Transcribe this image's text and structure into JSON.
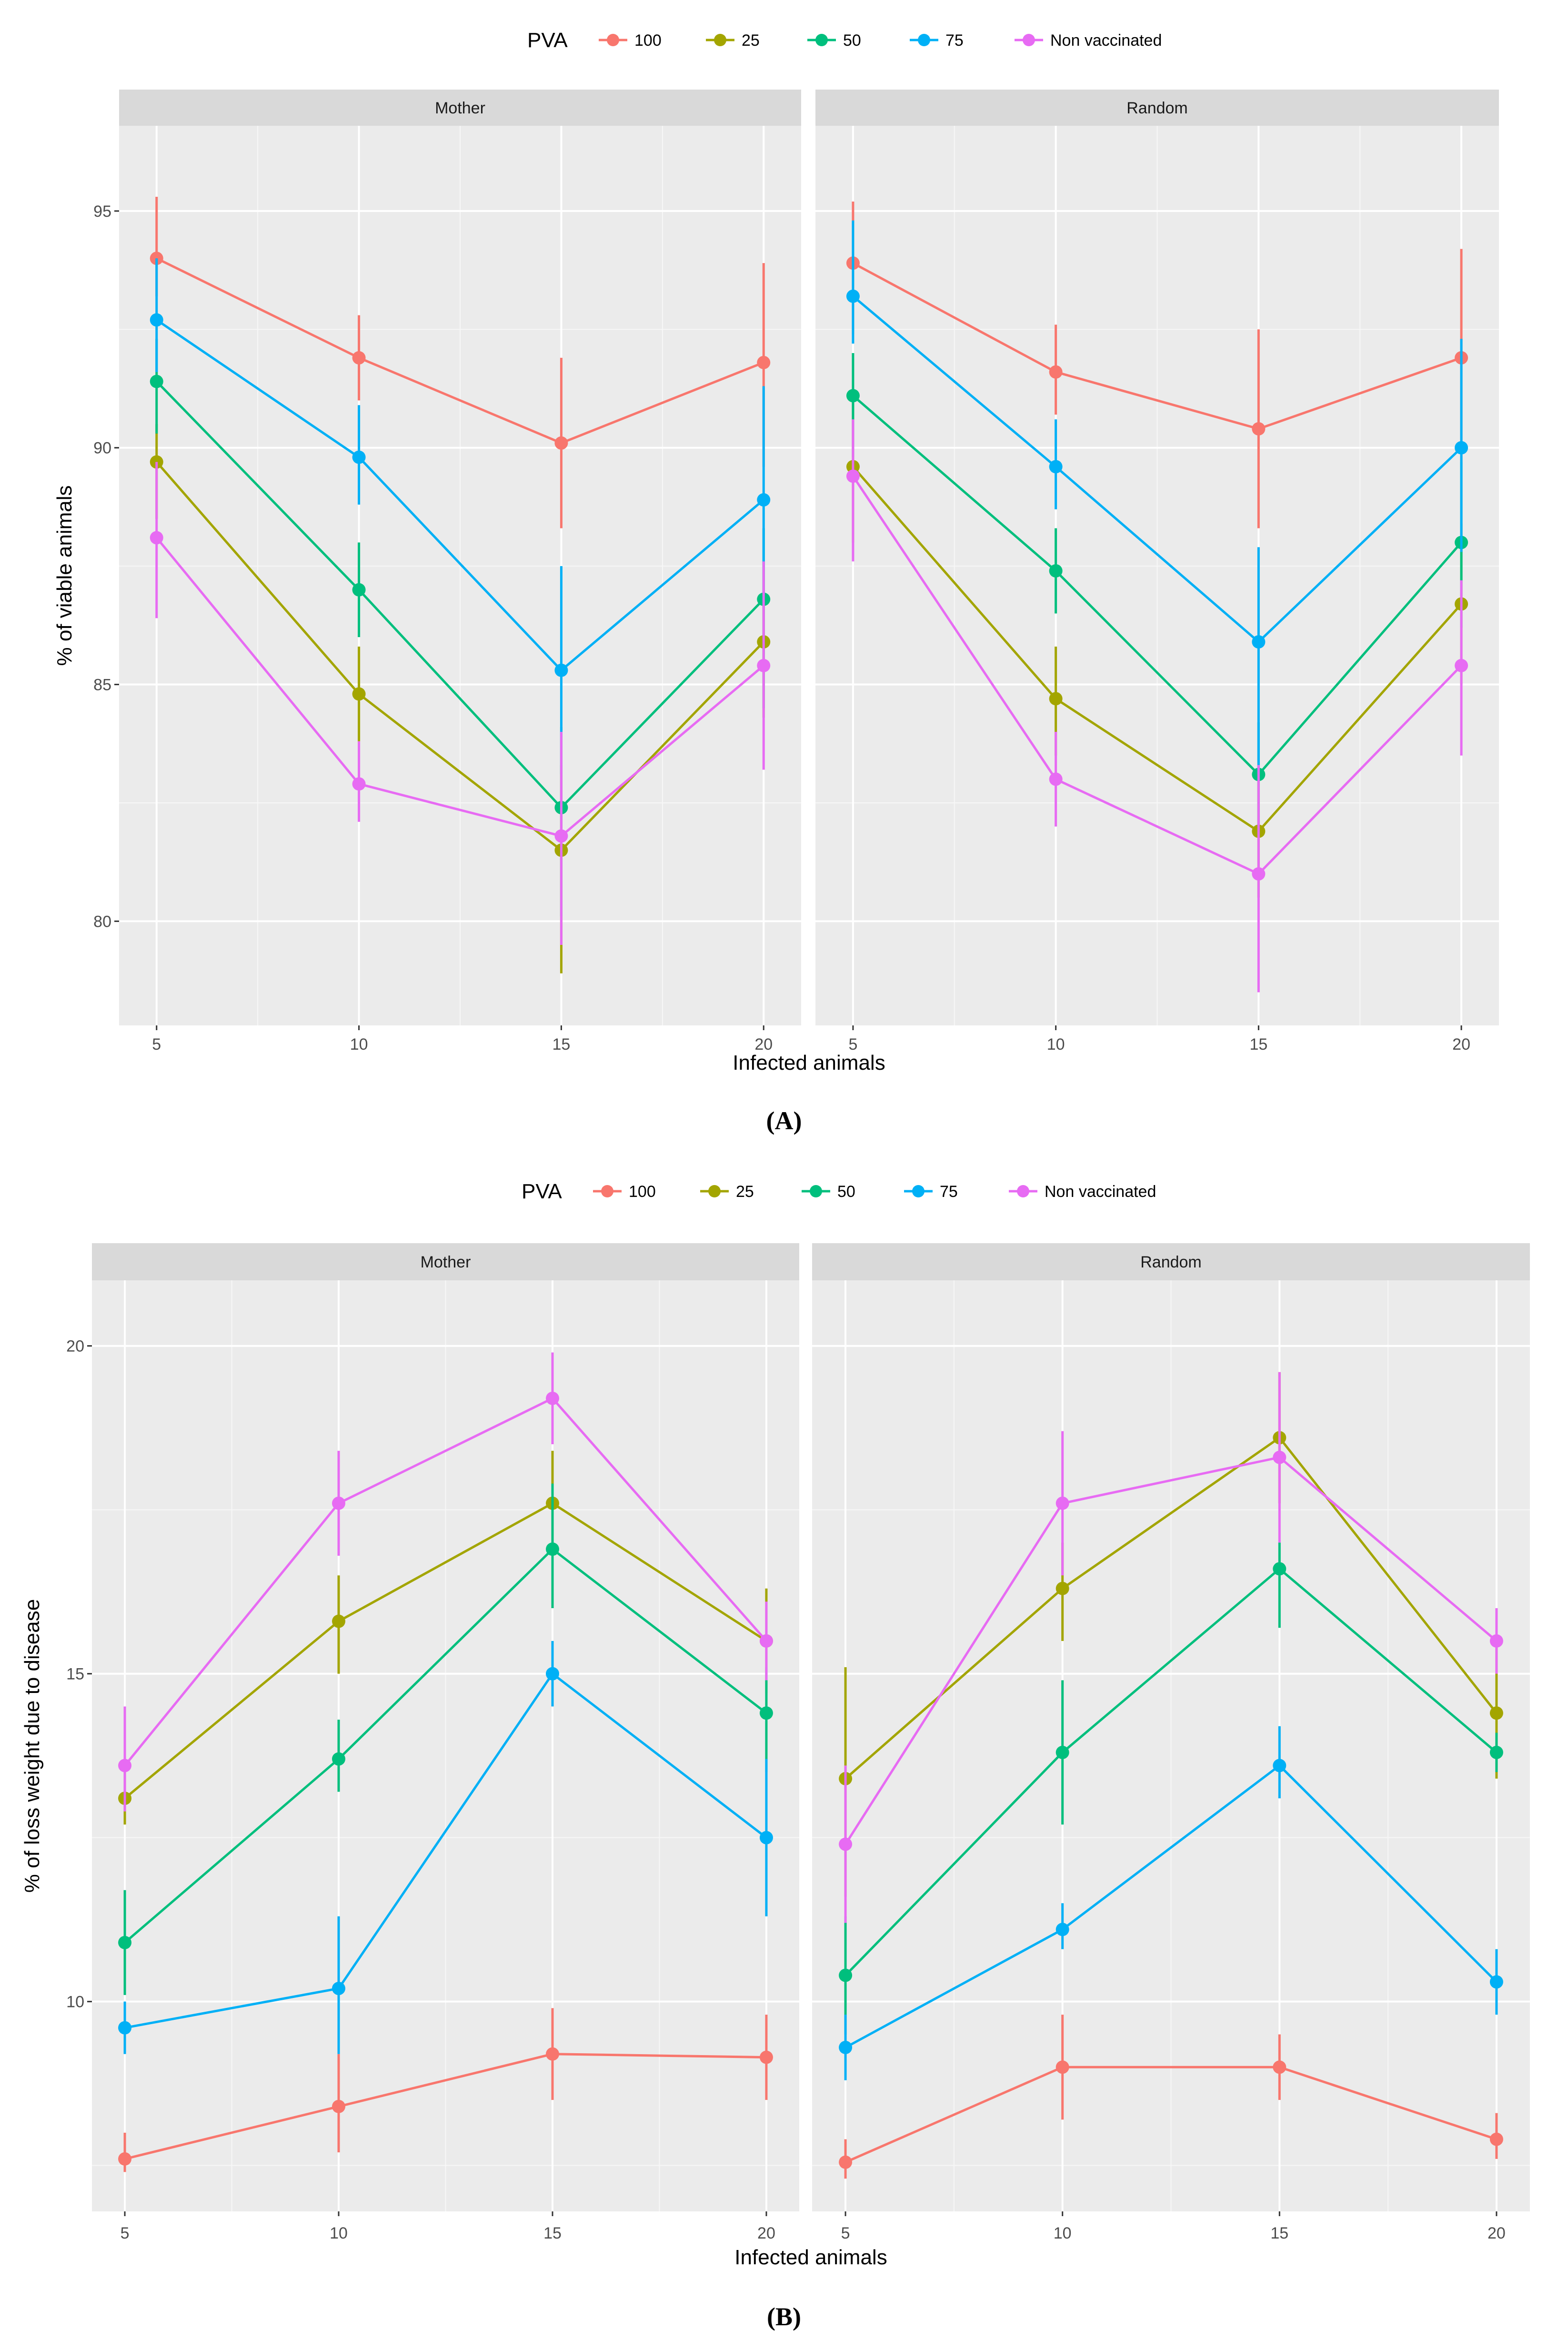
{
  "chart_data": [
    {
      "type": "line",
      "panel_label": "(A)",
      "title": "",
      "xlabel": "Infected animals",
      "ylabel": "% of viable animals",
      "legend_title": "PVA",
      "legend_position": "top",
      "ylim": [
        77.8,
        96.8
      ],
      "yticks": [
        80,
        85,
        90,
        95
      ],
      "ytick_labels": [
        "80",
        "85",
        "90",
        "95"
      ],
      "x": [
        5,
        10,
        15,
        20
      ],
      "xtick_labels": [
        "5",
        "10",
        "15",
        "20"
      ],
      "facets": [
        {
          "name": "Mother",
          "series": [
            {
              "name": "100",
              "color": "#F8766D",
              "values": [
                94.0,
                91.9,
                90.1,
                91.8
              ],
              "lower": [
                93.2,
                91.0,
                88.3,
                89.6
              ],
              "upper": [
                95.3,
                92.8,
                91.9,
                93.9
              ]
            },
            {
              "name": "25",
              "color": "#A3A500",
              "values": [
                89.7,
                84.8,
                81.5,
                85.9
              ],
              "lower": [
                88.5,
                83.8,
                78.9,
                84.3
              ],
              "upper": [
                90.5,
                85.8,
                83.3,
                87.6
              ]
            },
            {
              "name": "50",
              "color": "#00BF7D",
              "values": [
                91.4,
                87.0,
                82.4,
                86.8
              ],
              "lower": [
                90.3,
                86.0,
                80.1,
                84.5
              ],
              "upper": [
                92.3,
                88.0,
                84.1,
                88.3
              ]
            },
            {
              "name": "75",
              "color": "#00B0F6",
              "values": [
                92.7,
                89.8,
                85.3,
                88.9
              ],
              "lower": [
                91.6,
                88.8,
                83.1,
                86.9
              ],
              "upper": [
                94.0,
                90.9,
                87.5,
                91.3
              ]
            },
            {
              "name": "Non vaccinated",
              "color": "#E76BF3",
              "values": [
                88.1,
                82.9,
                81.8,
                85.4
              ],
              "lower": [
                86.4,
                82.1,
                79.5,
                83.2
              ],
              "upper": [
                89.7,
                83.8,
                84.0,
                87.6
              ]
            }
          ]
        },
        {
          "name": "Random",
          "series": [
            {
              "name": "100",
              "color": "#F8766D",
              "values": [
                93.9,
                91.6,
                90.4,
                91.9
              ],
              "lower": [
                92.4,
                90.7,
                88.3,
                89.7
              ],
              "upper": [
                95.2,
                92.6,
                92.5,
                94.2
              ]
            },
            {
              "name": "25",
              "color": "#A3A500",
              "values": [
                89.6,
                84.7,
                81.9,
                86.7
              ],
              "lower": [
                88.0,
                83.5,
                80.5,
                85.0
              ],
              "upper": [
                91.0,
                85.8,
                83.0,
                88.4
              ]
            },
            {
              "name": "50",
              "color": "#00BF7D",
              "values": [
                91.1,
                87.4,
                83.1,
                88.0
              ],
              "lower": [
                89.8,
                86.5,
                81.8,
                86.2
              ],
              "upper": [
                92.0,
                88.3,
                84.2,
                89.7
              ]
            },
            {
              "name": "75",
              "color": "#00B0F6",
              "values": [
                93.2,
                89.6,
                85.9,
                90.0
              ],
              "lower": [
                92.2,
                88.7,
                83.1,
                87.8
              ],
              "upper": [
                94.8,
                90.6,
                87.9,
                92.3
              ]
            },
            {
              "name": "Non vaccinated",
              "color": "#E76BF3",
              "values": [
                89.4,
                83.0,
                81.0,
                85.4
              ],
              "lower": [
                87.6,
                82.0,
                78.5,
                83.5
              ],
              "upper": [
                90.6,
                84.0,
                83.3,
                87.2
              ]
            }
          ]
        }
      ]
    },
    {
      "type": "line",
      "panel_label": "(B)",
      "title": "",
      "xlabel": "Infected animals",
      "ylabel": "% of loss weight due to disease",
      "legend_title": "PVA",
      "legend_position": "top",
      "ylim": [
        6.8,
        21.0
      ],
      "yticks": [
        10,
        15,
        20
      ],
      "ytick_labels": [
        "10",
        "15",
        "20"
      ],
      "x": [
        5,
        10,
        15,
        20
      ],
      "xtick_labels": [
        "5",
        "10",
        "15",
        "20"
      ],
      "facets": [
        {
          "name": "Mother",
          "series": [
            {
              "name": "100",
              "color": "#F8766D",
              "values": [
                7.6,
                8.4,
                9.2,
                9.15
              ],
              "lower": [
                7.4,
                7.7,
                8.5,
                8.5
              ],
              "upper": [
                8.0,
                9.2,
                9.9,
                9.8
              ]
            },
            {
              "name": "25",
              "color": "#A3A500",
              "values": [
                13.1,
                15.8,
                17.6,
                15.5
              ],
              "lower": [
                12.7,
                15.0,
                16.8,
                14.7
              ],
              "upper": [
                13.6,
                16.5,
                18.4,
                16.3
              ]
            },
            {
              "name": "50",
              "color": "#00BF7D",
              "values": [
                10.9,
                13.7,
                16.9,
                14.4
              ],
              "lower": [
                10.1,
                13.2,
                16.0,
                13.5
              ],
              "upper": [
                11.7,
                14.3,
                17.9,
                15.1
              ]
            },
            {
              "name": "75",
              "color": "#00B0F6",
              "values": [
                9.6,
                10.2,
                15.0,
                12.5
              ],
              "lower": [
                9.2,
                9.2,
                14.5,
                11.3
              ],
              "upper": [
                10.0,
                11.3,
                15.5,
                13.7
              ]
            },
            {
              "name": "Non vaccinated",
              "color": "#E76BF3",
              "values": [
                13.6,
                17.6,
                19.2,
                15.5
              ],
              "lower": [
                12.9,
                16.8,
                18.5,
                14.9
              ],
              "upper": [
                14.5,
                18.4,
                19.9,
                16.1
              ]
            }
          ]
        },
        {
          "name": "Random",
          "series": [
            {
              "name": "100",
              "color": "#F8766D",
              "values": [
                7.55,
                9.0,
                9.0,
                7.9
              ],
              "lower": [
                7.3,
                8.2,
                8.5,
                7.6
              ],
              "upper": [
                7.9,
                9.8,
                9.5,
                8.3
              ]
            },
            {
              "name": "25",
              "color": "#A3A500",
              "values": [
                13.4,
                16.3,
                18.6,
                14.4
              ],
              "lower": [
                11.6,
                15.5,
                17.6,
                13.4
              ],
              "upper": [
                15.1,
                17.0,
                19.6,
                15.4
              ]
            },
            {
              "name": "50",
              "color": "#00BF7D",
              "values": [
                10.4,
                13.8,
                16.6,
                13.8
              ],
              "lower": [
                9.5,
                12.7,
                15.7,
                13.5
              ],
              "upper": [
                11.3,
                14.9,
                17.0,
                14.1
              ]
            },
            {
              "name": "75",
              "color": "#00B0F6",
              "values": [
                9.3,
                11.1,
                13.6,
                10.3
              ],
              "lower": [
                8.8,
                10.8,
                13.1,
                9.8
              ],
              "upper": [
                9.8,
                11.5,
                14.2,
                10.8
              ]
            },
            {
              "name": "Non vaccinated",
              "color": "#E76BF3",
              "values": [
                12.4,
                17.6,
                18.3,
                15.5
              ],
              "lower": [
                11.2,
                16.5,
                17.0,
                15.0
              ],
              "upper": [
                13.6,
                18.7,
                19.6,
                16.0
              ]
            }
          ]
        }
      ]
    }
  ]
}
